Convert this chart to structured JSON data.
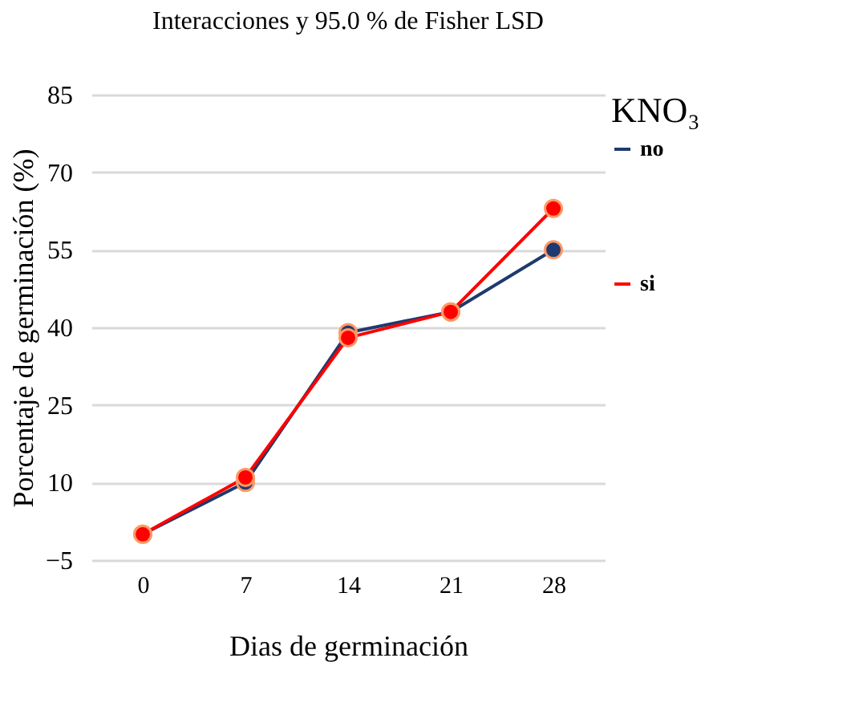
{
  "chart_data": {
    "type": "line",
    "title": "Interacciones y 95.0 % de Fisher LSD",
    "xlabel": "Dias de germinación",
    "ylabel": "Porcentaje de germinación (%)",
    "legend_title": "KNO₃",
    "categories": [
      "0",
      "7",
      "14",
      "21",
      "28"
    ],
    "series": [
      {
        "name": "no",
        "color": "#1f3a6e",
        "values": [
          0,
          10,
          39,
          43,
          55
        ]
      },
      {
        "name": "si",
        "color": "#ff0000",
        "values": [
          0,
          11,
          38,
          43,
          63
        ]
      }
    ],
    "ylim": [
      -5,
      85
    ],
    "yticks": [
      -5,
      10,
      25,
      40,
      55,
      70,
      85
    ],
    "grid": "y",
    "legend": "right",
    "marker": "circle",
    "line_style": "solid"
  }
}
